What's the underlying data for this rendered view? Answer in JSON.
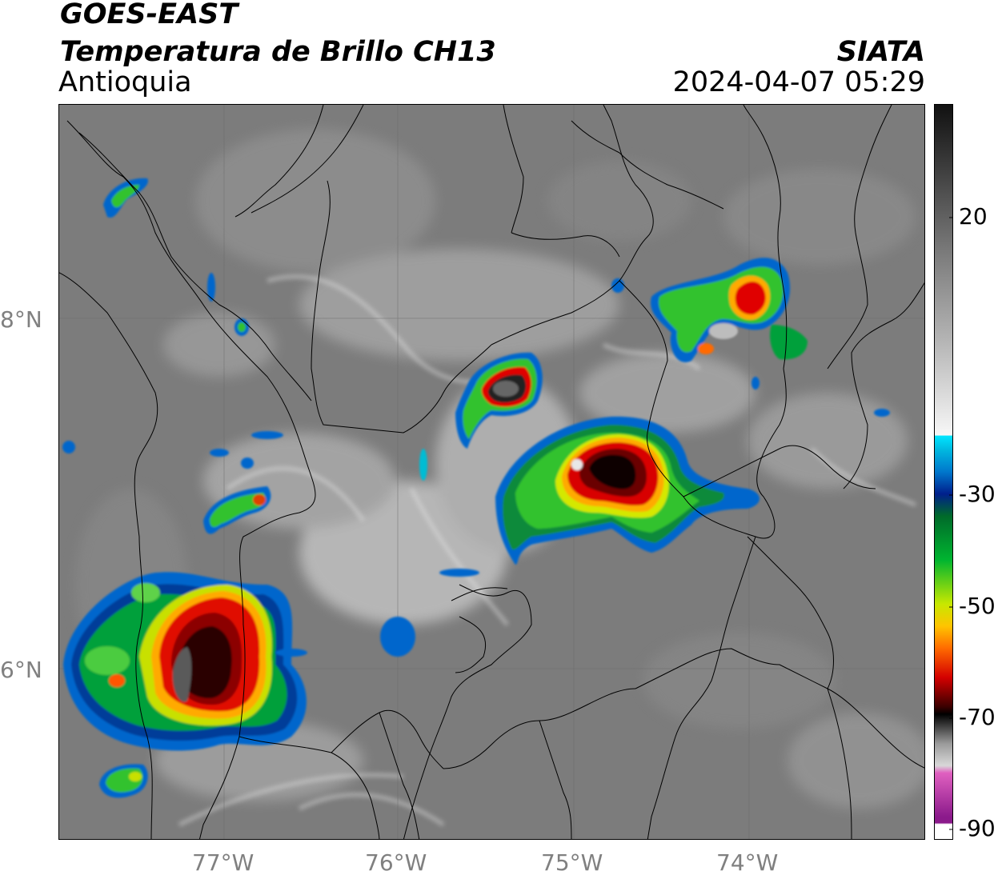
{
  "header": {
    "satellite": "GOES-EAST",
    "product": "Temperatura de Brillo CH13",
    "region": "Antioquia",
    "agency": "SIATA",
    "datetime": "2024-04-07 05:29"
  },
  "axes": {
    "x_ticks": [
      "77°W",
      "76°W",
      "75°W",
      "74°W"
    ],
    "y_ticks": [
      "8°N",
      "6°N"
    ]
  },
  "colorbar": {
    "ticks": [
      "20",
      "-30",
      "-50",
      "-70",
      "-90"
    ],
    "segments": [
      {
        "color": "#111111"
      },
      {
        "color": "#4a4a4a"
      },
      {
        "color": "#8c8c8c"
      },
      {
        "color": "#cfcfcf"
      },
      {
        "color": "#f7f7f7"
      },
      {
        "color": "#00e5ff"
      },
      {
        "color": "#0077cc"
      },
      {
        "color": "#001f8c"
      },
      {
        "color": "#006a2a"
      },
      {
        "color": "#00b530"
      },
      {
        "color": "#c8e800"
      },
      {
        "color": "#ffc400"
      },
      {
        "color": "#ff6b00"
      },
      {
        "color": "#d40000"
      },
      {
        "color": "#3a0000"
      },
      {
        "color": "#000000"
      },
      {
        "color": "#b0b0b0"
      },
      {
        "color": "#e060c0"
      },
      {
        "color": "#8b1a8b"
      },
      {
        "color": "#ffffff"
      }
    ]
  },
  "map": {
    "icon": "infrared-satellite-imagery",
    "storm_cells": [
      {
        "name": "cell-choco-south",
        "peak_temp_c": -75
      },
      {
        "name": "cell-central-east",
        "peak_temp_c": -72
      },
      {
        "name": "cell-north-central",
        "peak_temp_c": -70
      },
      {
        "name": "cell-northeast",
        "peak_temp_c": -62
      },
      {
        "name": "cell-west-small",
        "peak_temp_c": -58
      },
      {
        "name": "cell-south-small",
        "peak_temp_c": -45
      }
    ]
  }
}
